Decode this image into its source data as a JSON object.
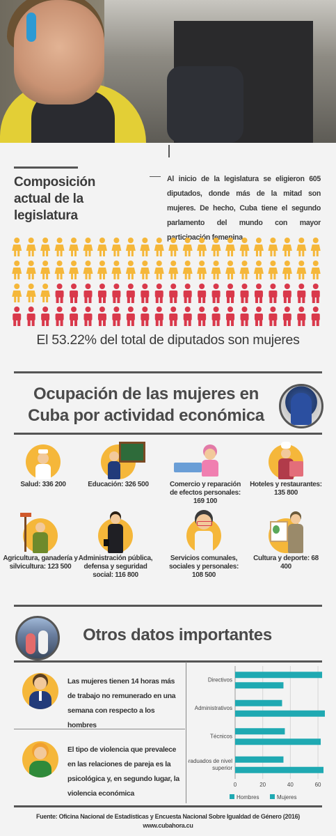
{
  "section1": {
    "title": "Composición actual de la legislatura",
    "text": "Al inicio de la legislatura se eligieron 605 diputados, donde más de la mitad son mujeres. De hecho, Cuba tiene el segundo parlamento del mundo con mayor participación femenina",
    "caption": "El 53.22% del total de diputados son mujeres",
    "women_percent": 53.22,
    "colors": {
      "women": "#f5b73a",
      "men": "#d9394b"
    }
  },
  "section2": {
    "title": "Ocupación de las mujeres en Cuba por actividad económica",
    "items": [
      {
        "label": "Salud: 336 200",
        "icon": "nurse-icon"
      },
      {
        "label": "Educación: 326 500",
        "icon": "teacher-icon"
      },
      {
        "label": "Comercio y reparación de efectos personales: 169 100",
        "icon": "cashier-icon"
      },
      {
        "label": "Hoteles y restaurantes: 135 800",
        "icon": "chef-icon"
      },
      {
        "label": "Agricultura, ganadería y silvicultura: 123 500",
        "icon": "farmer-icon"
      },
      {
        "label": "Administración pública, defensa y seguridad social: 116 800",
        "icon": "official-icon"
      },
      {
        "label": "Servicios comunales, sociales y personales: 108 500",
        "icon": "worker-icon"
      },
      {
        "label": "Cultura y deporte: 68 400",
        "icon": "painter-icon"
      }
    ]
  },
  "section3": {
    "title": "Otros datos importantes",
    "facts": [
      {
        "text": "Las mujeres tienen 14 horas más de trabajo no remunerado en una semana con respecto a los hombres"
      },
      {
        "text": "El tipo de violencia que prevalece en las relaciones de pareja es la psicológica y, en segundo lugar, la violencia económica"
      }
    ]
  },
  "chart_data": {
    "type": "bar",
    "orientation": "horizontal",
    "categories": [
      "Directivos",
      "Administrativos",
      "Técnicos",
      "Graduados de nivel superior"
    ],
    "series": [
      {
        "name": "Hombres",
        "values": [
          63,
          34,
          36,
          35
        ],
        "color": "#1fa9b2"
      },
      {
        "name": "Mujeres",
        "values": [
          35,
          65,
          62,
          64
        ],
        "color": "#1fa9b2"
      }
    ],
    "xlim": [
      0,
      65
    ],
    "xticks": [
      0,
      20,
      40,
      60
    ],
    "legend": "bottom"
  },
  "footer": {
    "source": "Fuente:  Oficina Nacional de Estadísticas y Encuesta Nacional Sobre Igualdad de Género (2016)",
    "url": "www.cubahora.cu"
  }
}
